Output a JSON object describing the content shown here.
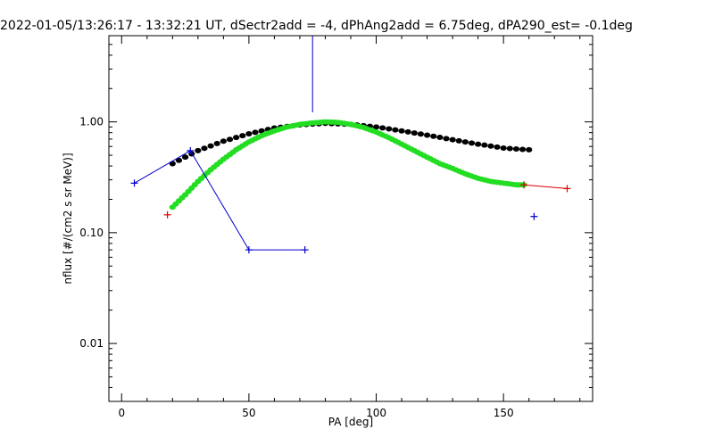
{
  "chart_data": {
    "type": "scatter",
    "title": "2022-01-05/13:26:17 - 13:32:21 UT, dSectr2add = -4, dPhAng2add = 6.75deg, dPA290_est=  -0.1deg",
    "xlabel": "PA [deg]",
    "ylabel": "nflux [#/(cm2 s sr MeV)]",
    "xlim": [
      -5,
      185
    ],
    "ylim": [
      0.003,
      6.0
    ],
    "yscale": "log",
    "x_ticks": [
      0,
      50,
      100,
      150
    ],
    "x_tick_labels": [
      "0",
      "50",
      "100",
      "150"
    ],
    "y_ticks": [
      0.01,
      0.1,
      1.0
    ],
    "y_tick_labels": [
      "0.01",
      "0.10",
      "1.00"
    ],
    "grid": false,
    "series": [
      {
        "style": "dots",
        "color": "#000000",
        "x": [
          20,
          30,
          40,
          50,
          60,
          70,
          80,
          90,
          100,
          110,
          120,
          130,
          140,
          150,
          160
        ],
        "y": [
          0.42,
          0.55,
          0.67,
          0.78,
          0.88,
          0.94,
          0.97,
          0.95,
          0.9,
          0.83,
          0.76,
          0.69,
          0.63,
          0.58,
          0.56
        ]
      },
      {
        "style": "dots",
        "color": "#22dd22",
        "x": [
          20,
          25,
          30,
          35,
          40,
          45,
          50,
          55,
          60,
          65,
          70,
          75,
          80,
          85,
          90,
          95,
          100,
          105,
          110,
          115,
          120,
          125,
          130,
          135,
          140,
          145,
          150,
          155,
          158
        ],
        "y": [
          0.17,
          0.22,
          0.29,
          0.37,
          0.46,
          0.56,
          0.66,
          0.75,
          0.83,
          0.9,
          0.95,
          0.98,
          1.0,
          0.99,
          0.95,
          0.89,
          0.81,
          0.72,
          0.63,
          0.55,
          0.48,
          0.42,
          0.38,
          0.34,
          0.31,
          0.29,
          0.28,
          0.27,
          0.27
        ]
      },
      {
        "style": "line-plus",
        "color": "#0000cc",
        "x": [
          5,
          27,
          50,
          72
        ],
        "y": [
          0.28,
          0.55,
          0.07,
          0.07
        ]
      },
      {
        "style": "plus",
        "color": "#0000cc",
        "x": [
          162
        ],
        "y": [
          0.14
        ]
      },
      {
        "style": "vline",
        "color": "#0000cc",
        "x": [
          75,
          75
        ],
        "y": [
          1.22,
          6.0
        ]
      },
      {
        "style": "plus",
        "color": "#dd0000",
        "x": [
          18
        ],
        "y": [
          0.145
        ]
      },
      {
        "style": "line-plus",
        "color": "#dd0000",
        "x": [
          158,
          175
        ],
        "y": [
          0.27,
          0.25
        ]
      }
    ]
  }
}
